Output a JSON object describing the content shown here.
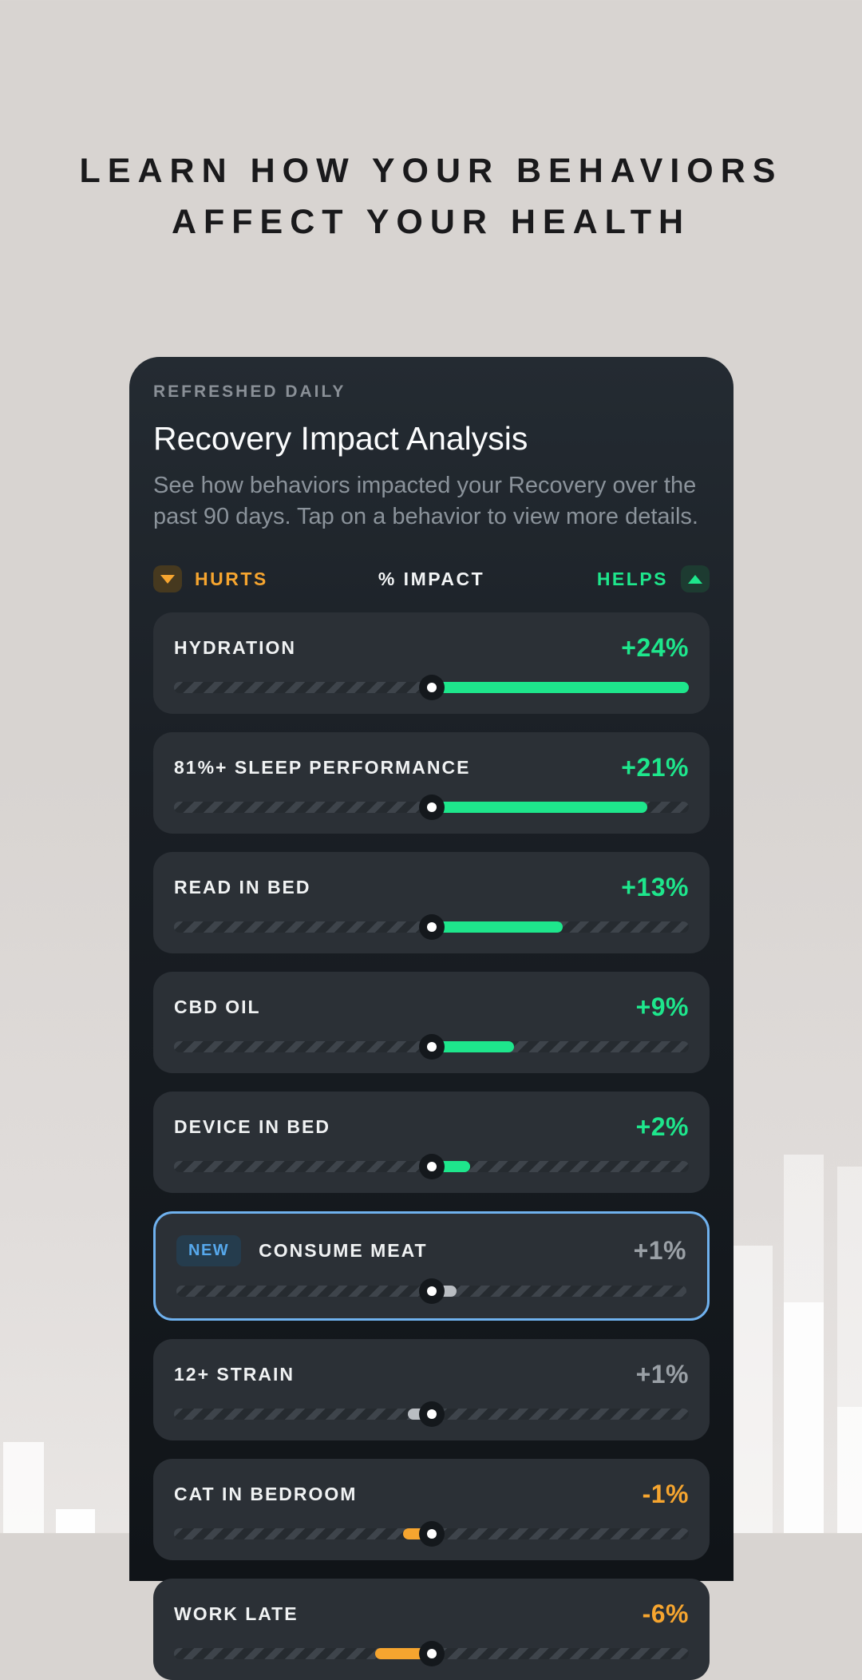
{
  "headline": {
    "line1": "LEARN HOW YOUR BEHAVIORS",
    "line2": "AFFECT YOUR HEALTH"
  },
  "card": {
    "eyebrow": "REFRESHED DAILY",
    "title": "Recovery Impact Analysis",
    "description": "See how behaviors impacted your Recovery over the past 90 days. Tap on a behavior to view more details.",
    "sort": {
      "hurts_label": "HURTS",
      "impact_label": "% IMPACT",
      "helps_label": "HELPS",
      "hurts_icon": "triangle-down-icon",
      "helps_icon": "triangle-up-icon"
    }
  },
  "rows": [
    {
      "label": "HYDRATION",
      "value": "+24%",
      "sentiment": "positive",
      "bar_side": "right",
      "bar_pct": 100
    },
    {
      "label": "81%+ SLEEP PERFORMANCE",
      "value": "+21%",
      "sentiment": "positive",
      "bar_side": "right",
      "bar_pct": 84
    },
    {
      "label": "READ IN BED",
      "value": "+13%",
      "sentiment": "positive",
      "bar_side": "right",
      "bar_pct": 51
    },
    {
      "label": "CBD OIL",
      "value": "+9%",
      "sentiment": "positive",
      "bar_side": "right",
      "bar_pct": 32
    },
    {
      "label": "DEVICE IN BED",
      "value": "+2%",
      "sentiment": "positive",
      "bar_side": "right",
      "bar_pct": 15
    },
    {
      "label": "CONSUME MEAT",
      "value": "+1%",
      "sentiment": "neutral",
      "bar_side": "right",
      "bar_pct": 10,
      "badge": "NEW",
      "highlighted": true
    },
    {
      "label": "12+ STRAIN",
      "value": "+1%",
      "sentiment": "neutral",
      "bar_side": "left",
      "bar_pct": 9
    },
    {
      "label": "CAT IN BEDROOM",
      "value": "-1%",
      "sentiment": "negative",
      "bar_side": "left",
      "bar_pct": 11
    },
    {
      "label": "WORK LATE",
      "value": "-6%",
      "sentiment": "negative",
      "bar_side": "left",
      "bar_pct": 22
    }
  ],
  "colors": {
    "green": "#1ee68c",
    "orange": "#f6a52f",
    "highlight_blue": "#6fb1ee",
    "gray_bar": "#b9bdc2",
    "card_bg_top": "#242b32",
    "page_bg": "#d8d4d1"
  },
  "background_decorations": [
    "bar-chart-shape-left",
    "bar-chart-shape-right"
  ]
}
